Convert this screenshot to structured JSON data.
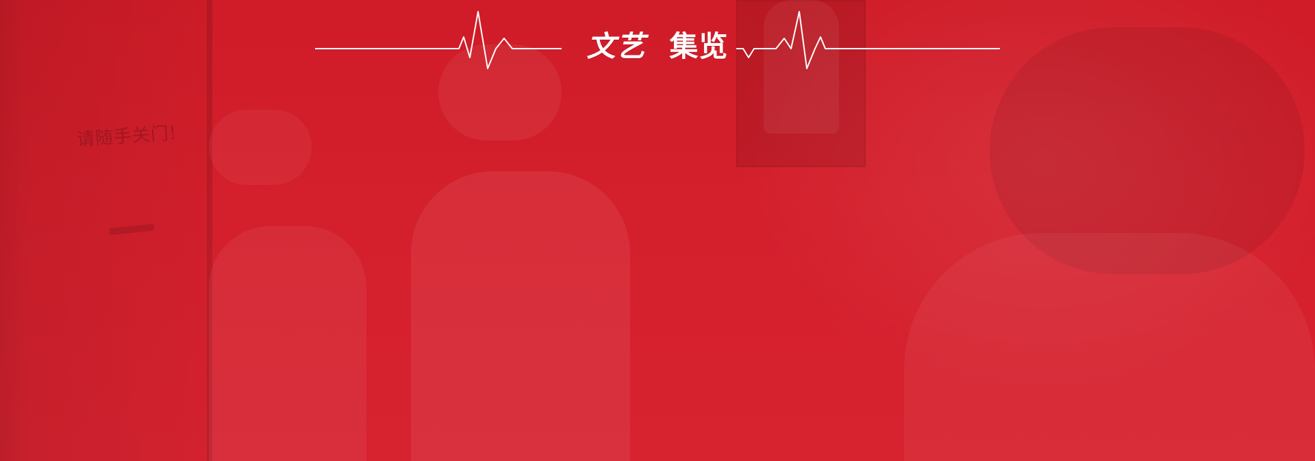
{
  "header": {
    "title_part1": "文艺",
    "title_part2": "集览"
  },
  "background": {
    "door_sign_text": "请随手关门!"
  },
  "colors": {
    "banner_red": "#d61f2c",
    "text_white": "#ffffff"
  },
  "icons": {
    "left_ecg": "heartbeat-line-icon",
    "right_ecg": "heartbeat-line-icon"
  }
}
